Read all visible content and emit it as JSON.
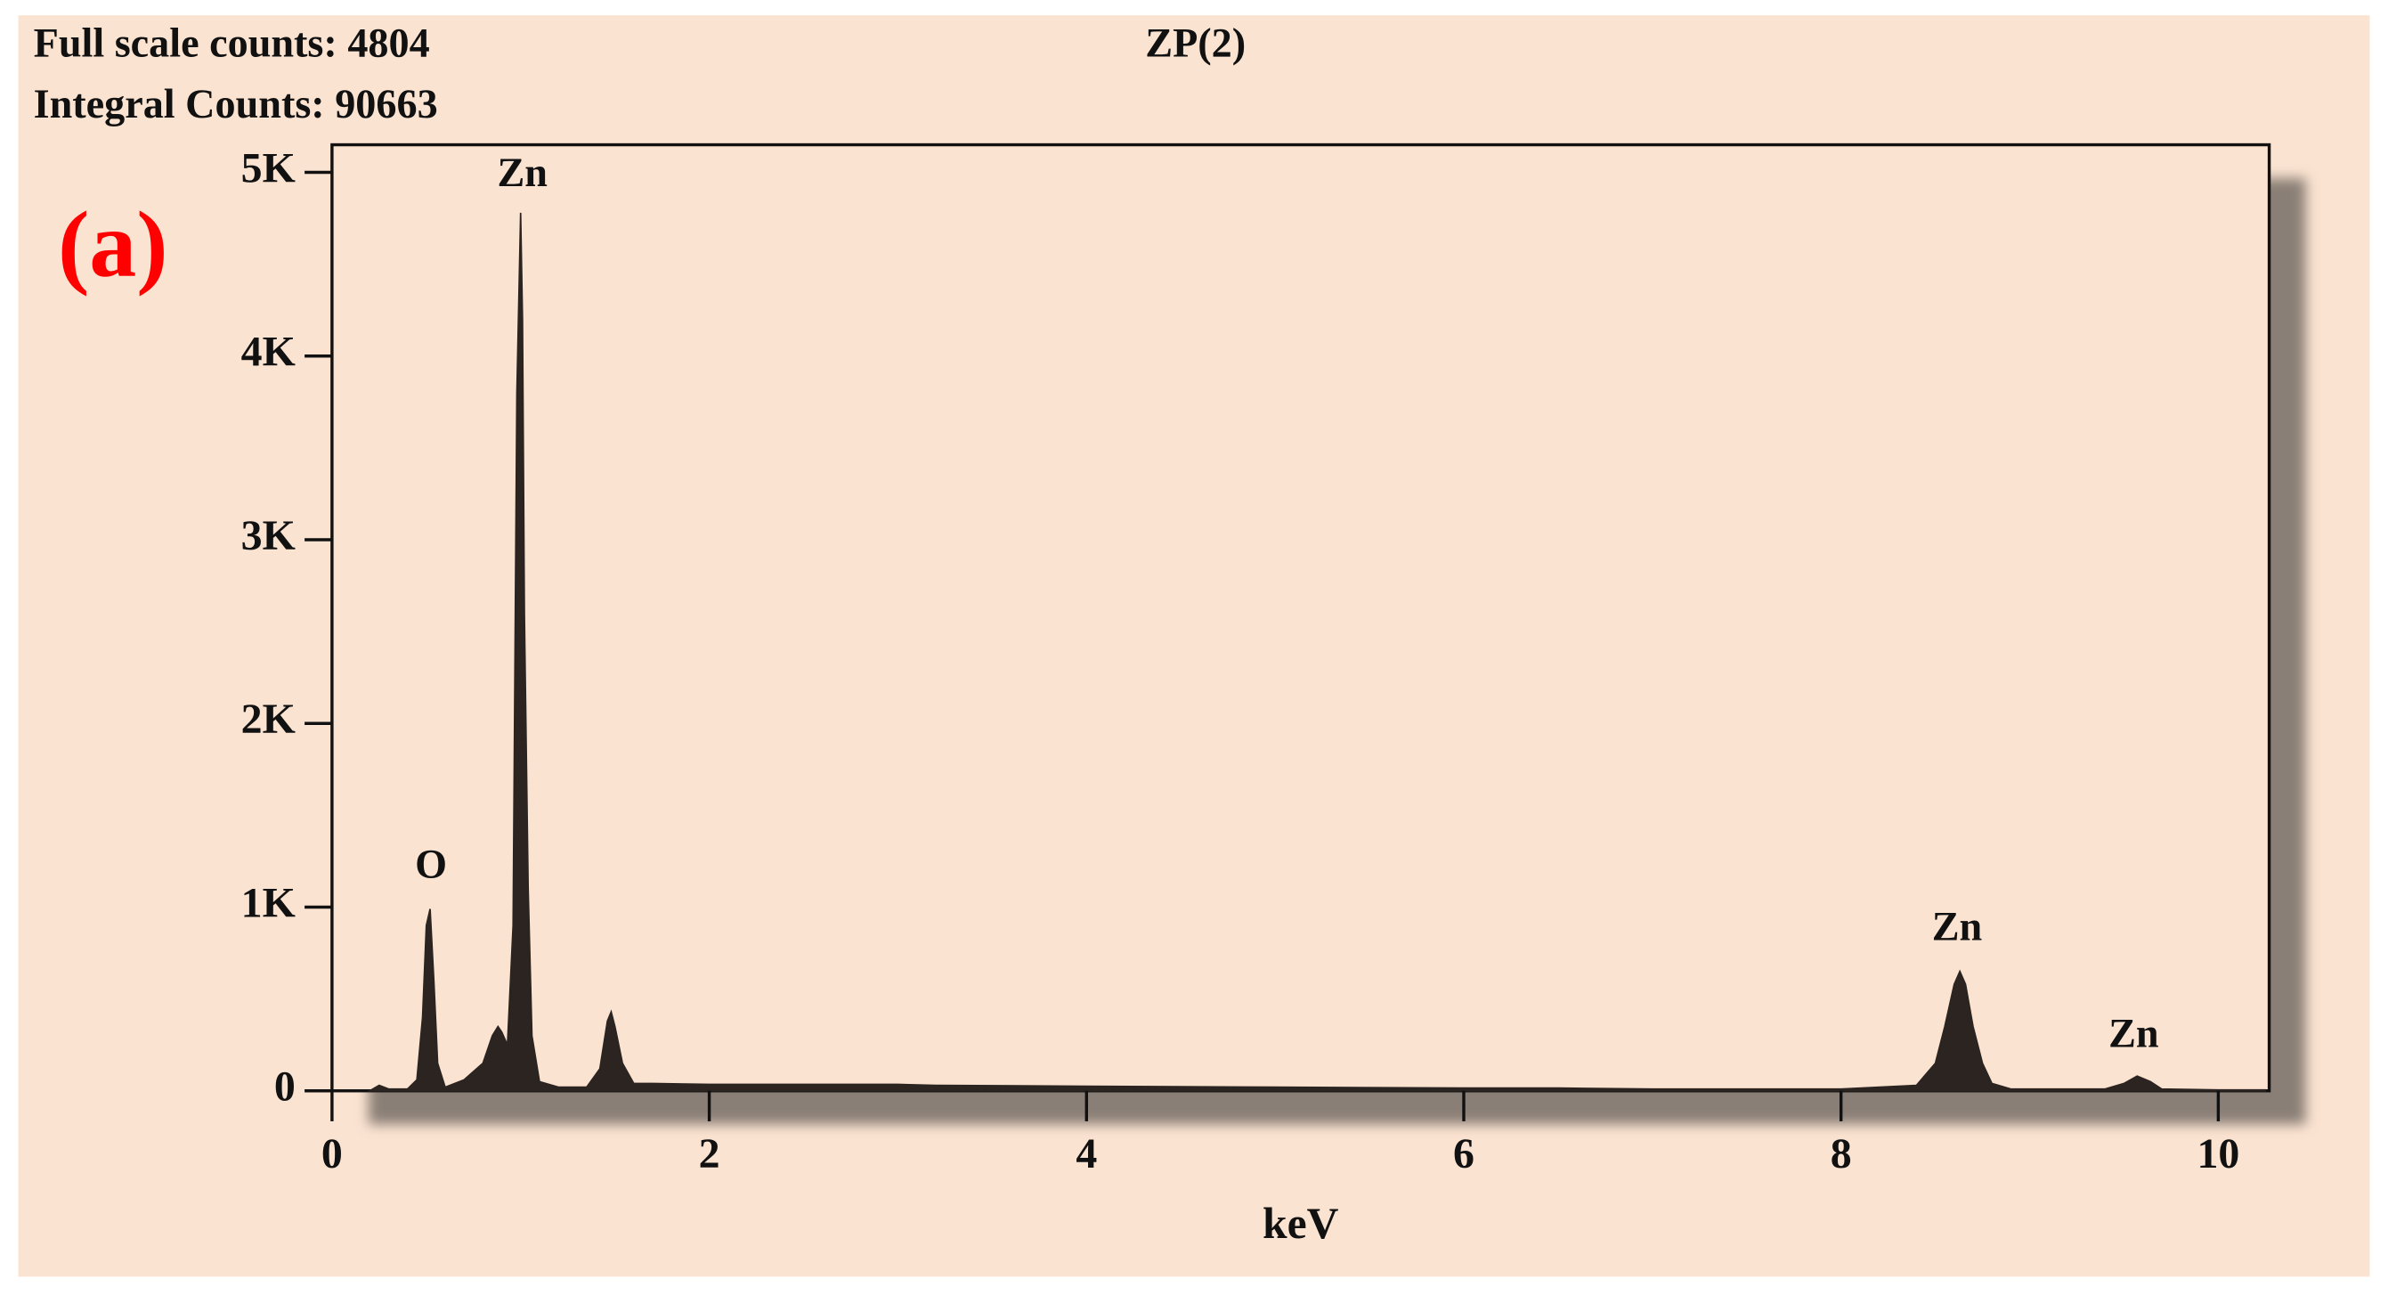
{
  "chart_data": {
    "type": "area",
    "title": "ZP(2)",
    "header_lines": [
      "Full scale counts: 4804",
      "Integral Counts: 90663"
    ],
    "panel_label": "(a)",
    "x_label": "keV",
    "peak_labels": [
      "O",
      "Zn",
      "Zn",
      "Zn"
    ],
    "x": [
      0.2,
      0.25,
      0.3,
      0.4,
      0.45,
      0.48,
      0.5,
      0.52,
      0.54,
      0.56,
      0.6,
      0.7,
      0.8,
      0.85,
      0.88,
      0.9,
      0.93,
      0.96,
      0.98,
      1.0,
      1.01,
      1.02,
      1.04,
      1.06,
      1.1,
      1.2,
      1.35,
      1.42,
      1.46,
      1.48,
      1.5,
      1.54,
      1.6,
      1.7,
      2.0,
      3.0,
      3.2,
      4.0,
      5.0,
      6.0,
      6.5,
      7.0,
      8.0,
      8.4,
      8.5,
      8.55,
      8.6,
      8.63,
      8.66,
      8.7,
      8.75,
      8.8,
      8.9,
      9.0,
      9.4,
      9.5,
      9.57,
      9.64,
      9.7,
      10.0,
      10.25
    ],
    "values": [
      0,
      30,
      10,
      10,
      60,
      400,
      900,
      990,
      600,
      150,
      20,
      60,
      150,
      300,
      350,
      320,
      250,
      900,
      3800,
      4780,
      4200,
      2600,
      1100,
      300,
      50,
      20,
      20,
      120,
      380,
      430,
      350,
      150,
      40,
      40,
      35,
      35,
      30,
      25,
      20,
      15,
      15,
      10,
      10,
      30,
      150,
      350,
      580,
      650,
      580,
      350,
      150,
      40,
      10,
      10,
      10,
      40,
      80,
      50,
      10,
      5,
      5
    ],
    "color": "#2b2420",
    "xlim": [
      0,
      10.27
    ],
    "ylim": [
      0,
      5150
    ],
    "xticks": [
      0,
      2,
      4,
      6,
      8,
      10
    ],
    "yticks": [
      {
        "value": 0,
        "label": "0"
      },
      {
        "value": 1000,
        "label": "1K"
      },
      {
        "value": 2000,
        "label": "2K"
      },
      {
        "value": 3000,
        "label": "3K"
      },
      {
        "value": 4000,
        "label": "4K"
      },
      {
        "value": 5000,
        "label": "5K"
      }
    ],
    "grid": false
  }
}
